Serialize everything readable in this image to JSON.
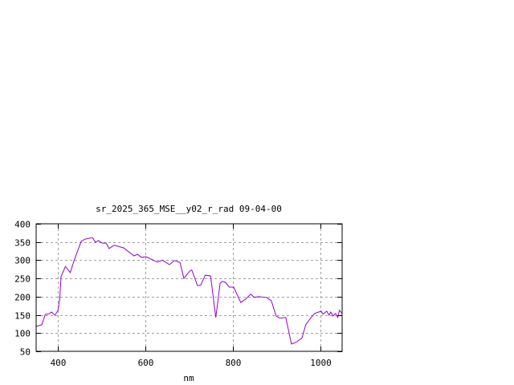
{
  "chart_data": {
    "type": "line",
    "title": "sr_2025_365_MSE__y02_r_rad 09-04-00",
    "xlabel": "nm",
    "ylabel": "",
    "xlim": [
      350,
      1050
    ],
    "ylim": [
      50,
      400
    ],
    "xticks": [
      400,
      600,
      800,
      1000
    ],
    "yticks": [
      50,
      100,
      150,
      200,
      250,
      300,
      350,
      400
    ],
    "grid": true,
    "line_color": "#9400d3",
    "series": [
      {
        "x": [
          350,
          363,
          371,
          380,
          385,
          393,
          400,
          404,
          407,
          417,
          428,
          437,
          453,
          462,
          479,
          486,
          492,
          501,
          510,
          517,
          528,
          550,
          574,
          582,
          591,
          602,
          627,
          639,
          655,
          666,
          679,
          688,
          701,
          706,
          719,
          726,
          737,
          749,
          752,
          761,
          771,
          776,
          783,
          792,
          802,
          818,
          829,
          841,
          849,
          859,
          877,
          888,
          899,
          908,
          921,
          934,
          945,
          958,
          967,
          976,
          987,
          1002,
          1006,
          1015,
          1020,
          1024,
          1029,
          1035,
          1040,
          1044,
          1050
        ],
        "y": [
          118,
          123,
          151,
          153,
          158,
          149,
          162,
          195,
          255,
          283,
          266,
          300,
          352,
          358,
          362,
          349,
          354,
          347,
          347,
          332,
          341,
          334,
          312,
          316,
          308,
          309,
          295,
          300,
          288,
          299,
          294,
          250,
          270,
          273,
          231,
          231,
          259,
          257,
          229,
          143,
          237,
          242,
          239,
          226,
          226,
          184,
          193,
          207,
          198,
          200,
          198,
          189,
          147,
          141,
          143,
          70,
          75,
          86,
          123,
          138,
          154,
          160,
          152,
          160,
          149,
          158,
          147,
          154,
          143,
          163,
          154
        ]
      }
    ]
  }
}
